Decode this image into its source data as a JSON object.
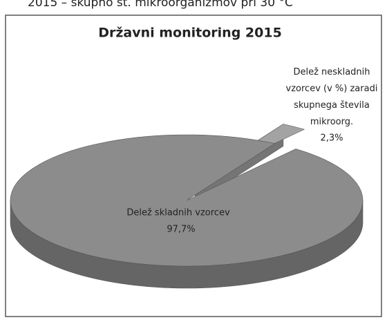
{
  "caption": "2015 – skupno št. mikroorganizmov pri 30 °C",
  "chart_data": {
    "type": "pie",
    "title": "Državni monitoring 2015",
    "categories": [
      "Delež skladnih vzorcev",
      "Delež neskladnih vzorcev (v %) zaradi skupnega števila mikroorg."
    ],
    "values": [
      97.7,
      2.3
    ],
    "value_labels": [
      "97,7%",
      "2,3%"
    ],
    "colors": [
      "#8c8c8c",
      "#a3a3a3"
    ]
  }
}
